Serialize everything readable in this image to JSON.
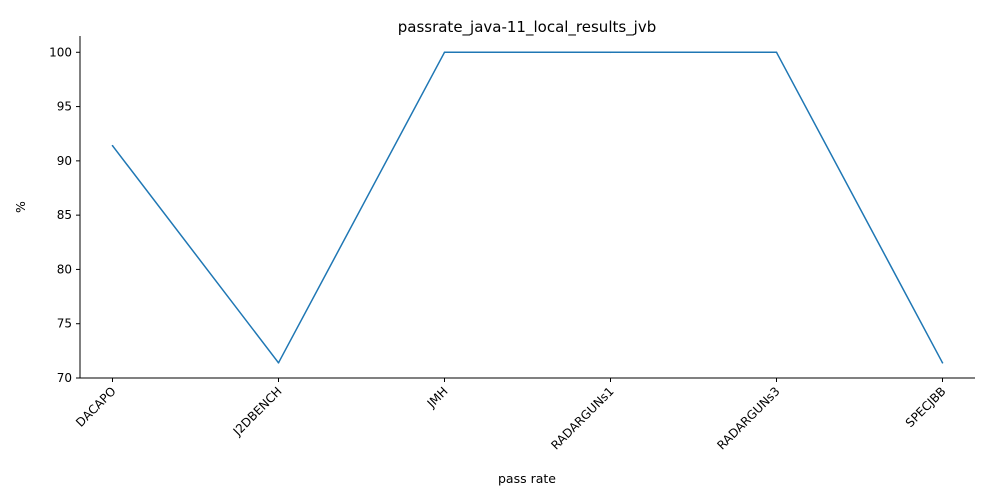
{
  "chart_data": {
    "type": "line",
    "title": "passrate_java-11_local_results_jvb",
    "xlabel": "pass rate",
    "ylabel": "%",
    "categories": [
      "DACAPO",
      "J2DBENCH",
      "JMH",
      "RADARGUNs1",
      "RADARGUNs3",
      "SPECJBB"
    ],
    "series": [
      {
        "values": [
          91.4,
          71.4,
          100,
          100,
          100,
          71.4
        ],
        "color": "#1f77b4"
      }
    ],
    "ylim": [
      70,
      101.5
    ],
    "yticks": [
      70,
      75,
      80,
      85,
      90,
      95,
      100
    ],
    "grid": false,
    "legend": "none",
    "xtick_rotation": 45
  }
}
